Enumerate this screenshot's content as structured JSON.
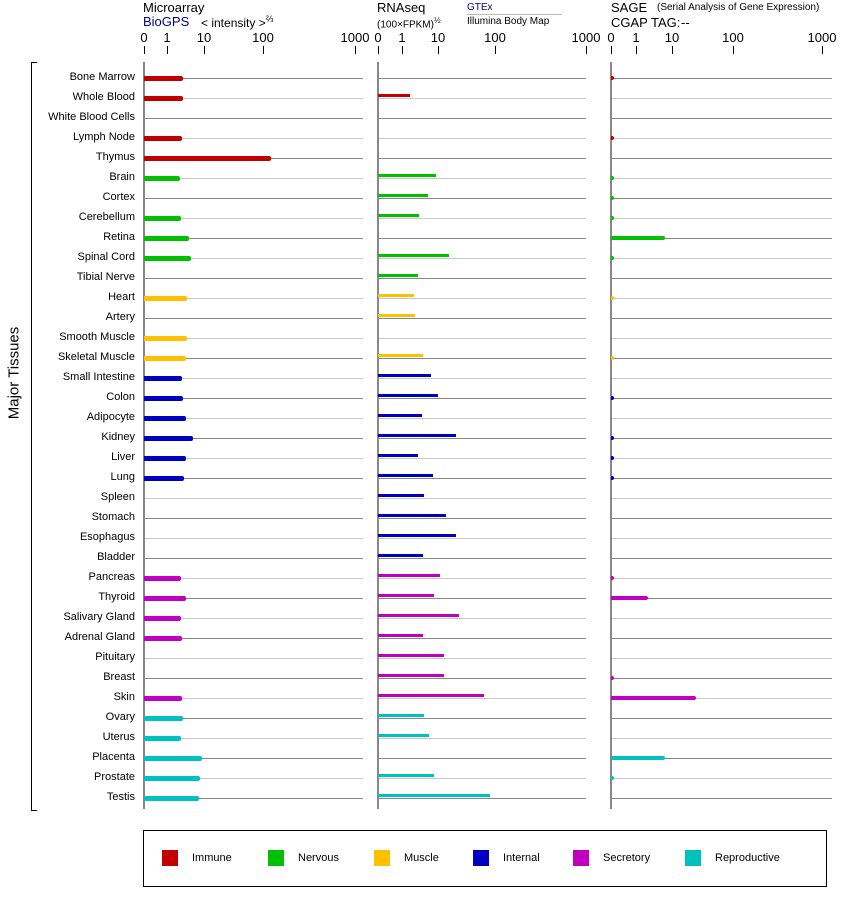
{
  "headers": {
    "microarray": {
      "title": "Microarray",
      "source": "BioGPS",
      "scale": "< intensity >",
      "exponent": "⅔"
    },
    "rnaseq": {
      "title": "RNAseq",
      "scale": "(100×FPKM)",
      "exponent": "½",
      "source1": "GTEx",
      "source2": "Illumina Body Map"
    },
    "sage": {
      "title": "SAGE",
      "subtitle": "(Serial Analysis of Gene Expression)",
      "tag_label": "CGAP TAG:",
      "tag_value": "--"
    }
  },
  "y_axis_label": "Major Tissues",
  "colors": {
    "Immune": "#c00000",
    "Nervous": "#00c000",
    "Muscle": "#ffc000",
    "Internal": "#0000c0",
    "Secretory": "#c000c0",
    "Reproductive": "#00c0c0"
  },
  "legend": [
    "Immune",
    "Nervous",
    "Muscle",
    "Internal",
    "Secretory",
    "Reproductive"
  ],
  "chart_data": {
    "type": "bar",
    "orientation": "horizontal",
    "tick_labels": [
      "0",
      "1",
      "10",
      "100",
      "1000"
    ],
    "tick_values": [
      0,
      1,
      10,
      100,
      1000
    ],
    "xlim": [
      0,
      1000
    ],
    "categories": [
      "Bone Marrow",
      "Whole Blood",
      "White Blood Cells",
      "Lymph Node",
      "Thymus",
      "Brain",
      "Cortex",
      "Cerebellum",
      "Retina",
      "Spinal Cord",
      "Tibial Nerve",
      "Heart",
      "Artery",
      "Smooth Muscle",
      "Skeletal Muscle",
      "Small Intestine",
      "Colon",
      "Adipocyte",
      "Kidney",
      "Liver",
      "Lung",
      "Spleen",
      "Stomach",
      "Esophagus",
      "Bladder",
      "Pancreas",
      "Thyroid",
      "Salivary Gland",
      "Adrenal Gland",
      "Pituitary",
      "Breast",
      "Skin",
      "Ovary",
      "Uterus",
      "Placenta",
      "Prostate",
      "Testis"
    ],
    "groups": [
      "Immune",
      "Immune",
      "Immune",
      "Immune",
      "Immune",
      "Nervous",
      "Nervous",
      "Nervous",
      "Nervous",
      "Nervous",
      "Nervous",
      "Muscle",
      "Muscle",
      "Muscle",
      "Muscle",
      "Internal",
      "Internal",
      "Internal",
      "Internal",
      "Internal",
      "Internal",
      "Internal",
      "Internal",
      "Internal",
      "Internal",
      "Secretory",
      "Secretory",
      "Secretory",
      "Secretory",
      "Secretory",
      "Secretory",
      "Secretory",
      "Reproductive",
      "Reproductive",
      "Reproductive",
      "Reproductive",
      "Reproductive"
    ],
    "series": [
      {
        "name": "Microarray",
        "values": [
          4.9,
          4.9,
          null,
          4.6,
          178,
          4.2,
          null,
          4.4,
          6.4,
          6.8,
          null,
          5.9,
          null,
          5.9,
          5.6,
          4.6,
          4.9,
          5.6,
          7.3,
          5.6,
          5.1,
          null,
          null,
          null,
          null,
          4.4,
          5.6,
          4.4,
          4.6,
          null,
          null,
          4.6,
          4.9,
          4.4,
          9.5,
          9.0,
          8.8
        ]
      },
      {
        "name": "RNAseq",
        "values": [
          null,
          3.0,
          null,
          null,
          null,
          9.5,
          7.5,
          5.3,
          null,
          27.4,
          5.0,
          4.0,
          4.3,
          null,
          6.3,
          8.3,
          10,
          6.0,
          38.4,
          5.0,
          8.8,
          6.5,
          22.6,
          38.4,
          6.3,
          13.2,
          9.0,
          43,
          6.3,
          19.5,
          19.5,
          82.6,
          6.5,
          7.8,
          null,
          9.0,
          92
        ]
      },
      {
        "name": "SAGE",
        "values": [
          0.1,
          null,
          null,
          0.1,
          null,
          0.1,
          0.1,
          0.1,
          8.25,
          0.1,
          null,
          0.1,
          null,
          null,
          0.1,
          null,
          0.1,
          null,
          0.1,
          0.1,
          0.1,
          null,
          null,
          null,
          null,
          0.1,
          4.0,
          null,
          null,
          null,
          0.1,
          45,
          null,
          null,
          8.25,
          0.1,
          null
        ]
      }
    ]
  }
}
